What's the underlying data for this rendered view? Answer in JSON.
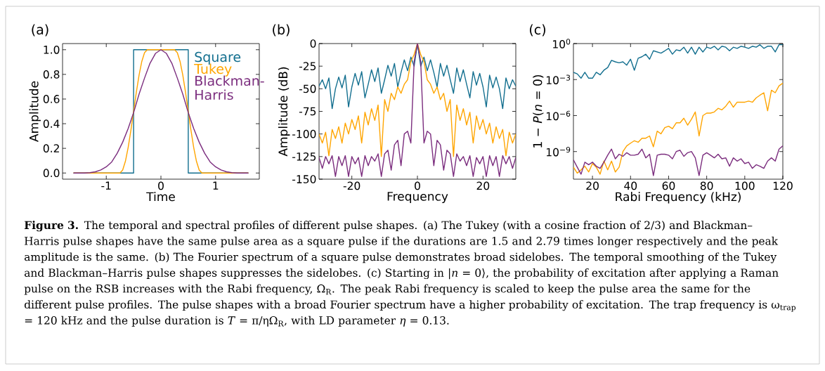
{
  "chart_data": [
    {
      "type": "line",
      "title": "(a)",
      "xlabel": "Time",
      "ylabel": "Amplitude",
      "xlim": [
        -1.8,
        1.8
      ],
      "ylim": [
        -0.05,
        1.05
      ],
      "xticks": [
        -1,
        0,
        1
      ],
      "yticks": [
        {
          "value": 0,
          "label": "0.0"
        },
        {
          "value": 0.2,
          "label": "0.2"
        },
        {
          "value": 0.4,
          "label": "0.4"
        },
        {
          "value": 0.6,
          "label": "0.6"
        },
        {
          "value": 0.8,
          "label": "0.8"
        },
        {
          "value": 1,
          "label": "1.0"
        }
      ],
      "legend": "top right",
      "series": [
        {
          "name": "Square",
          "color": "#136f8f",
          "x": [
            -1.6,
            -0.5,
            -0.5,
            0.5,
            0.5,
            1.6
          ],
          "values": [
            0,
            0,
            1,
            1,
            0,
            0
          ]
        },
        {
          "name": "Tukey",
          "color": "#ffa500",
          "x": [
            -1.6,
            -0.75,
            -0.7,
            -0.65,
            -0.6,
            -0.55,
            -0.5,
            -0.45,
            -0.4,
            -0.35,
            -0.3,
            -0.25,
            0.25,
            0.3,
            0.35,
            0.4,
            0.45,
            0.5,
            0.55,
            0.6,
            0.65,
            0.7,
            0.75,
            1.6
          ],
          "values": [
            0,
            0,
            0.024,
            0.095,
            0.206,
            0.345,
            0.5,
            0.655,
            0.794,
            0.905,
            0.976,
            1,
            1,
            0.976,
            0.905,
            0.794,
            0.655,
            0.5,
            0.345,
            0.206,
            0.095,
            0.024,
            0,
            0
          ]
        },
        {
          "name": "Blackman-Harris",
          "color": "#7b2d7e",
          "x": [
            -1.6,
            -1.4,
            -1.3,
            -1.2,
            -1.1,
            -1.0,
            -0.9,
            -0.8,
            -0.7,
            -0.6,
            -0.5,
            -0.4,
            -0.3,
            -0.2,
            -0.1,
            0,
            0.1,
            0.2,
            0.3,
            0.4,
            0.5,
            0.6,
            0.7,
            0.8,
            0.9,
            1.0,
            1.1,
            1.2,
            1.3,
            1.4,
            1.6
          ],
          "values": [
            0,
            0,
            0.003,
            0.01,
            0.025,
            0.05,
            0.09,
            0.16,
            0.25,
            0.36,
            0.49,
            0.64,
            0.77,
            0.89,
            0.97,
            1,
            0.97,
            0.89,
            0.77,
            0.64,
            0.49,
            0.36,
            0.25,
            0.16,
            0.09,
            0.05,
            0.025,
            0.01,
            0.003,
            0,
            0
          ]
        }
      ],
      "annotations": [
        "**Figure 3.** The temporal and spectral profiles of different pulse shapes. (a) The Tukey (with a cosine fraction of 2/3) and Blackman–Harris pulse shapes have the same pulse area as a square pulse if the durations are 1.5 and 2.79 times longer respectively and the peak amplitude is the same. (b) The Fourier spectrum of a square pulse demonstrates broad sidelobes. The temporal smoothing of the Tukey and Blackman–Harris pulse shapes suppresses the sidelobes. (c) Starting in |*n* = 0⟩, the probability of excitation after applying a Raman pulse on the RSB increases with the Rabi frequency, Ω$_{R}$. The peak Rabi frequency is scaled to keep the pulse area the same for the different pulse profiles. The pulse shapes with a broad Fourier spectrum have a higher probability of excitation. The trap frequency is ω$_{trap}$ = 120 kHz and the pulse duration is *T* = π/ηΩ$_{R}$, with LD parameter *η* = 0.13."
      ]
    },
    {
      "type": "line",
      "title": "(b)",
      "xlabel": "Frequency",
      "ylabel": "Amplitude (dB)",
      "xlim": [
        -30,
        30
      ],
      "ylim": [
        -150,
        0
      ],
      "xticks": [
        -20,
        0,
        20
      ],
      "yticks": [
        -150,
        -125,
        -100,
        -75,
        -50,
        -25,
        0
      ],
      "x": [
        -30,
        -29,
        -28,
        -27,
        -26,
        -25,
        -24,
        -23,
        -22,
        -21,
        -20,
        -19,
        -18,
        -17,
        -16,
        -15,
        -14,
        -13,
        -12,
        -11,
        -10,
        -9,
        -8,
        -7,
        -6,
        -5,
        -4,
        -3,
        -2,
        -1,
        0,
        1,
        2,
        3,
        4,
        5,
        6,
        7,
        8,
        9,
        10,
        11,
        12,
        13,
        14,
        15,
        16,
        17,
        18,
        19,
        20,
        21,
        22,
        23,
        24,
        25,
        26,
        27,
        28,
        29,
        30
      ],
      "series": [
        {
          "color": "#136f8f",
          "values": [
            -47,
            -40,
            -50,
            -38,
            -72,
            -50,
            -37,
            -49,
            -35,
            -70,
            -48,
            -33,
            -46,
            -31,
            -60,
            -45,
            -29,
            -42,
            -27,
            -55,
            -40,
            -24,
            -36,
            -22,
            -48,
            -32,
            -18,
            -30,
            -15,
            -25,
            0,
            -25,
            -15,
            -30,
            -18,
            -32,
            -48,
            -22,
            -36,
            -24,
            -40,
            -55,
            -27,
            -42,
            -29,
            -45,
            -60,
            -31,
            -46,
            -33,
            -48,
            -70,
            -35,
            -49,
            -37,
            -50,
            -72,
            -38,
            -50,
            -40,
            -47
          ]
        },
        {
          "color": "#ffa500",
          "values": [
            -100,
            -110,
            -98,
            -124,
            -95,
            -105,
            -92,
            -110,
            -88,
            -100,
            -84,
            -95,
            -80,
            -110,
            -76,
            -90,
            -72,
            -85,
            -68,
            -125,
            -62,
            -75,
            -55,
            -62,
            -48,
            -55,
            -45,
            -40,
            -20,
            -12,
            0,
            -12,
            -20,
            -40,
            -45,
            -55,
            -48,
            -62,
            -55,
            -75,
            -62,
            -125,
            -68,
            -85,
            -72,
            -90,
            -76,
            -110,
            -80,
            -95,
            -84,
            -100,
            -88,
            -110,
            -92,
            -105,
            -95,
            -124,
            -98,
            -110,
            -100
          ]
        },
        {
          "color": "#7b2d7e",
          "values": [
            -126,
            -138,
            -125,
            -133,
            -124,
            -147,
            -125,
            -135,
            -124,
            -147,
            -125,
            -133,
            -126,
            -147,
            -124,
            -135,
            -125,
            -130,
            -122,
            -147,
            -122,
            -118,
            -140,
            -112,
            -107,
            -135,
            -100,
            -97,
            -110,
            -20,
            0,
            -20,
            -110,
            -97,
            -100,
            -135,
            -107,
            -112,
            -140,
            -118,
            -122,
            -147,
            -122,
            -130,
            -125,
            -135,
            -124,
            -147,
            -126,
            -133,
            -125,
            -147,
            -124,
            -135,
            -125,
            -147,
            -124,
            -133,
            -125,
            -138,
            -126
          ]
        }
      ]
    },
    {
      "type": "line",
      "title": "(c)",
      "xlabel": "Rabi Frequency (kHz)",
      "ylabel": "1 − *P*(*n* = 0)",
      "log": true,
      "xlim": [
        10,
        120
      ],
      "ylim": [
        5e-12,
        1
      ],
      "xticks": [
        20,
        40,
        60,
        80,
        100,
        120
      ],
      "yticks": [
        {
          "value": 1e-09,
          "label": "10$^{−9}$"
        },
        {
          "value": 1e-06,
          "label": "10$^{−6}$"
        },
        {
          "value": 0.001,
          "label": "10$^{−3}$"
        },
        {
          "value": 1,
          "label": "10$^{0}$"
        }
      ],
      "x": [
        10,
        12,
        14,
        16,
        18,
        20,
        22,
        24,
        26,
        28,
        30,
        32,
        34,
        36,
        38,
        40,
        42,
        44,
        46,
        48,
        50,
        52,
        54,
        56,
        58,
        60,
        62,
        64,
        66,
        68,
        70,
        72,
        74,
        76,
        78,
        80,
        82,
        84,
        86,
        88,
        90,
        92,
        94,
        96,
        98,
        100,
        102,
        104,
        106,
        108,
        110,
        112,
        114,
        116,
        118,
        120
      ],
      "series": [
        {
          "color": "#136f8f",
          "values": [
            0.004,
            0.003,
            0.0013,
            0.004,
            0.0013,
            0.0013,
            0.004,
            0.0025,
            0.006,
            0.01,
            0.04,
            0.03,
            0.025,
            0.03,
            0.016,
            0.05,
            0.006,
            0.06,
            0.08,
            0.13,
            0.05,
            0.25,
            0.2,
            0.16,
            0.25,
            0.4,
            0.13,
            0.3,
            0.25,
            0.5,
            0.16,
            0.5,
            0.13,
            0.5,
            0.2,
            0.5,
            0.4,
            0.6,
            0.3,
            0.6,
            0.5,
            0.25,
            0.5,
            0.4,
            0.6,
            0.5,
            0.4,
            0.6,
            0.5,
            0.8,
            0.4,
            0.6,
            0.6,
            0.2,
            0.8,
            0.8
          ]
        },
        {
          "color": "#ffa500",
          "values": [
            5e-11,
            1.6e-11,
            3e-11,
            6e-11,
            2e-11,
            1e-10,
            5e-11,
            1.3e-11,
            1.6e-10,
            3e-11,
            1.6e-10,
            2e-11,
            5e-11,
            1e-09,
            3e-09,
            5e-09,
            8e-09,
            6e-09,
            1.3e-08,
            1.3e-08,
            2e-08,
            2.5e-09,
            5e-08,
            3e-08,
            1e-07,
            1.3e-07,
            8e-08,
            2.5e-07,
            2.5e-07,
            6e-07,
            1.6e-07,
            5e-07,
            2e-06,
            2e-08,
            1e-06,
            1.6e-06,
            1.6e-06,
            2e-06,
            4e-06,
            3e-06,
            6e-06,
            1.6e-05,
            5e-06,
            1.3e-05,
            1.3e-05,
            1.3e-05,
            1.6e-05,
            1.3e-05,
            3e-05,
            5e-05,
            8e-05,
            2.5e-06,
            0.00013,
            8e-05,
            0.0003,
            0.0005
          ]
        },
        {
          "color": "#7b2d7e",
          "values": [
            2e-10,
            5e-11,
            1.3e-11,
            1.3e-10,
            8e-11,
            1.3e-10,
            6e-11,
            4e-11,
            1.3e-10,
            5e-10,
            1.6e-09,
            2.5e-10,
            6e-10,
            4e-10,
            8e-10,
            5e-10,
            5e-10,
            6e-10,
            1.6e-09,
            3e-10,
            6e-10,
            1e-11,
            5e-10,
            6e-10,
            6e-10,
            5e-10,
            2.5e-10,
            1e-09,
            1.3e-09,
            4e-10,
            8e-10,
            1e-09,
            3e-10,
            1e-11,
            5e-10,
            8e-10,
            5e-10,
            3e-10,
            6e-10,
            2.5e-10,
            3e-10,
            6e-11,
            3e-10,
            1.6e-10,
            2.5e-10,
            1e-10,
            1.3e-10,
            4e-11,
            8e-11,
            6e-11,
            4e-11,
            1.6e-10,
            3e-10,
            1.6e-10,
            1.6e-09,
            3e-09
          ]
        }
      ]
    }
  ]
}
